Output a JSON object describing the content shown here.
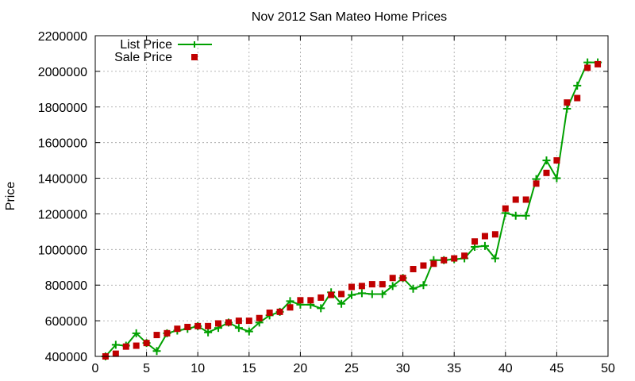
{
  "chart_data": {
    "type": "line",
    "title": "Nov 2012 San Mateo Home Prices",
    "xlabel": "",
    "ylabel": "Price",
    "xlim": [
      0,
      50
    ],
    "ylim": [
      400000,
      2200000
    ],
    "x_ticks": [
      "0",
      "5",
      "10",
      "15",
      "20",
      "25",
      "30",
      "35",
      "40",
      "45",
      "50"
    ],
    "y_ticks": [
      "400000",
      "600000",
      "800000",
      "1000000",
      "1200000",
      "1400000",
      "1600000",
      "1800000",
      "2000000",
      "2200000"
    ],
    "grid": true,
    "legend_position": "top-left",
    "x": [
      1,
      2,
      3,
      4,
      5,
      6,
      7,
      8,
      9,
      10,
      11,
      12,
      13,
      14,
      15,
      16,
      17,
      18,
      19,
      20,
      21,
      22,
      23,
      24,
      25,
      26,
      27,
      28,
      29,
      30,
      31,
      32,
      33,
      34,
      35,
      36,
      37,
      38,
      39,
      40,
      41,
      42,
      43,
      44,
      45,
      46,
      47,
      48,
      49
    ],
    "series": [
      {
        "name": "List Price",
        "style": "line-points",
        "color": "#00a000",
        "values": [
          400000,
          465000,
          460000,
          530000,
          475000,
          430000,
          530000,
          545000,
          555000,
          570000,
          535000,
          560000,
          590000,
          560000,
          540000,
          590000,
          630000,
          650000,
          710000,
          690000,
          690000,
          670000,
          760000,
          695000,
          745000,
          755000,
          750000,
          750000,
          795000,
          840000,
          780000,
          800000,
          940000,
          940000,
          945000,
          950000,
          1015000,
          1020000,
          950000,
          1205000,
          1190000,
          1190000,
          1395000,
          1500000,
          1400000,
          1790000,
          1920000,
          2050000,
          2050000
        ]
      },
      {
        "name": "Sale Price",
        "style": "points",
        "color": "#c00000",
        "values": [
          400000,
          415000,
          455000,
          460000,
          475000,
          520000,
          530000,
          555000,
          565000,
          570000,
          570000,
          585000,
          590000,
          600000,
          600000,
          615000,
          645000,
          650000,
          675000,
          715000,
          715000,
          730000,
          745000,
          750000,
          790000,
          795000,
          805000,
          805000,
          840000,
          840000,
          890000,
          910000,
          920000,
          940000,
          950000,
          965000,
          1045000,
          1075000,
          1085000,
          1230000,
          1280000,
          1280000,
          1370000,
          1430000,
          1500000,
          1825000,
          1850000,
          2020000,
          2040000
        ]
      }
    ]
  }
}
